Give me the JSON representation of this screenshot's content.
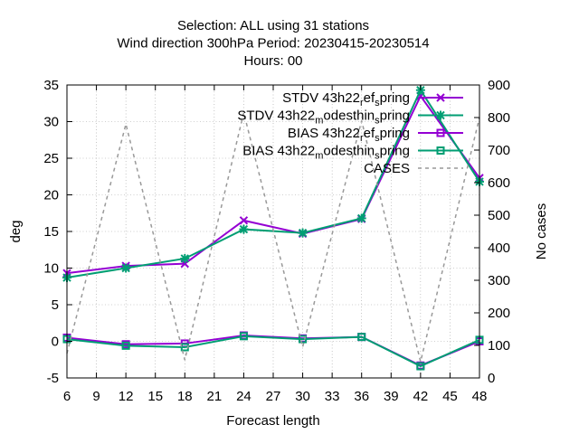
{
  "chart_data": {
    "type": "line",
    "title_lines": [
      "Selection: ALL using    31 stations",
      "Wind direction 300hPa   Period: 20230415-20230514",
      "Hours:  00"
    ],
    "xlabel": "Forecast length",
    "ylabel": "deg",
    "y2label": "No cases",
    "xlim": [
      6,
      48
    ],
    "ylim": [
      -5,
      35
    ],
    "y2lim": [
      0,
      900
    ],
    "xticks": [
      6,
      9,
      12,
      15,
      18,
      21,
      24,
      27,
      30,
      33,
      36,
      39,
      42,
      45,
      48
    ],
    "yticks": [
      -5,
      0,
      5,
      10,
      15,
      20,
      25,
      30,
      35
    ],
    "y2ticks": [
      0,
      100,
      200,
      300,
      400,
      500,
      600,
      700,
      800,
      900
    ],
    "grid": true,
    "legend_position": "top-right",
    "x": [
      6,
      12,
      18,
      24,
      30,
      36,
      42,
      48
    ],
    "series": [
      {
        "legend": [
          "STDV 43h22",
          "r",
          "ef",
          "s",
          "pring"
        ],
        "color": "#9400d3",
        "marker": "x",
        "axis": "y",
        "values": [
          9.3,
          10.3,
          10.6,
          16.5,
          14.7,
          16.7,
          33.5,
          22.3
        ]
      },
      {
        "legend": [
          "STDV 43h22",
          "m",
          "odesthin",
          "s",
          "pring"
        ],
        "color": "#009e73",
        "marker": "star",
        "axis": "y",
        "values": [
          8.7,
          10.0,
          11.3,
          15.3,
          14.8,
          16.8,
          34.3,
          21.8
        ]
      },
      {
        "legend": [
          "BIAS 43h22",
          "r",
          "ef",
          "s",
          "pring"
        ],
        "color": "#9400d3",
        "marker": "square",
        "axis": "y",
        "values": [
          0.5,
          -0.4,
          -0.3,
          0.8,
          0.4,
          0.6,
          -3.3,
          0.0
        ]
      },
      {
        "legend": [
          "BIAS 43h22",
          "m",
          "odesthin",
          "s",
          "pring"
        ],
        "color": "#009e73",
        "marker": "square",
        "axis": "y",
        "values": [
          0.3,
          -0.6,
          -0.8,
          0.7,
          0.3,
          0.6,
          -3.4,
          0.2
        ]
      },
      {
        "legend": [
          "CASES",
          "",
          "",
          "",
          ""
        ],
        "color": "#999999",
        "marker": "none",
        "dashed": true,
        "axis": "y2",
        "values": [
          75,
          780,
          55,
          815,
          95,
          790,
          50,
          800
        ]
      }
    ]
  }
}
